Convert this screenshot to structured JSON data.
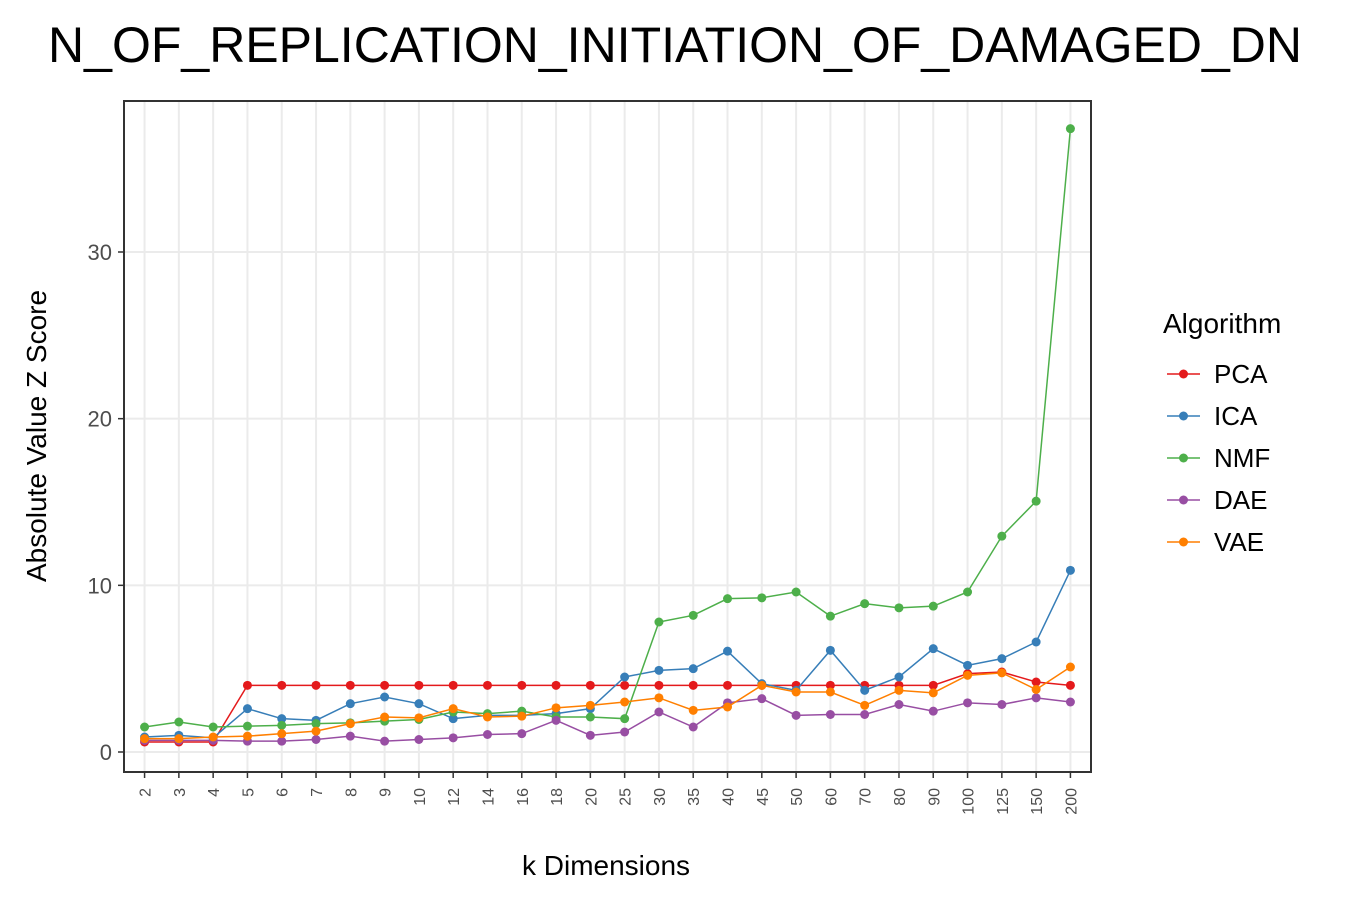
{
  "chart_data": {
    "type": "line",
    "title": "N_OF_REPLICATION_INITIATION_OF_DAMAGED_DN",
    "x_label": "k Dimensions",
    "y_label": "Absolute Value Z Score",
    "legend_title": "Algorithm",
    "legend_position": "right",
    "grid": true,
    "categories": [
      "2",
      "3",
      "4",
      "5",
      "6",
      "7",
      "8",
      "9",
      "10",
      "12",
      "14",
      "16",
      "18",
      "20",
      "25",
      "30",
      "35",
      "40",
      "45",
      "50",
      "60",
      "70",
      "80",
      "90",
      "100",
      "125",
      "150",
      "200"
    ],
    "ylim": [
      -1.2,
      39.06
    ],
    "yticks": [
      0,
      10,
      20,
      30
    ],
    "series": [
      {
        "name": "PCA",
        "color": "#e41a1c",
        "values": [
          0.6,
          0.6,
          0.6,
          4.0,
          4.0,
          4.0,
          4.0,
          4.0,
          4.0,
          4.0,
          4.0,
          4.0,
          4.0,
          4.0,
          4.0,
          4.0,
          4.0,
          4.0,
          4.0,
          4.0,
          4.0,
          4.0,
          4.0,
          4.0,
          4.7,
          4.8,
          4.2,
          4.0
        ]
      },
      {
        "name": "ICA",
        "color": "#377eb8",
        "values": [
          0.9,
          1.0,
          0.85,
          2.6,
          2.0,
          1.9,
          2.9,
          3.3,
          2.9,
          2.0,
          2.2,
          2.2,
          2.3,
          2.6,
          4.5,
          4.9,
          5.0,
          6.05,
          4.1,
          3.7,
          6.1,
          3.7,
          4.5,
          6.2,
          5.2,
          5.6,
          6.6,
          10.9
        ]
      },
      {
        "name": "NMF",
        "color": "#4daf4a",
        "values": [
          1.5,
          1.8,
          1.5,
          1.55,
          1.6,
          1.7,
          1.75,
          1.85,
          1.95,
          2.4,
          2.3,
          2.45,
          2.1,
          2.1,
          2.0,
          7.8,
          8.2,
          9.2,
          9.25,
          9.6,
          8.15,
          8.9,
          8.65,
          8.75,
          9.6,
          12.95,
          15.05,
          37.4
        ]
      },
      {
        "name": "DAE",
        "color": "#984ea3",
        "values": [
          0.7,
          0.7,
          0.7,
          0.65,
          0.65,
          0.75,
          0.95,
          0.65,
          0.75,
          0.85,
          1.05,
          1.1,
          1.9,
          1.0,
          1.2,
          2.4,
          1.5,
          2.95,
          3.2,
          2.2,
          2.25,
          2.25,
          2.85,
          2.45,
          2.95,
          2.85,
          3.25,
          3.0
        ]
      },
      {
        "name": "VAE",
        "color": "#ff7f00",
        "values": [
          0.8,
          0.8,
          0.9,
          0.95,
          1.1,
          1.25,
          1.7,
          2.1,
          2.05,
          2.6,
          2.1,
          2.15,
          2.65,
          2.8,
          3.0,
          3.25,
          2.5,
          2.7,
          4.0,
          3.6,
          3.6,
          2.8,
          3.7,
          3.55,
          4.6,
          4.75,
          3.75,
          5.1
        ]
      }
    ]
  }
}
